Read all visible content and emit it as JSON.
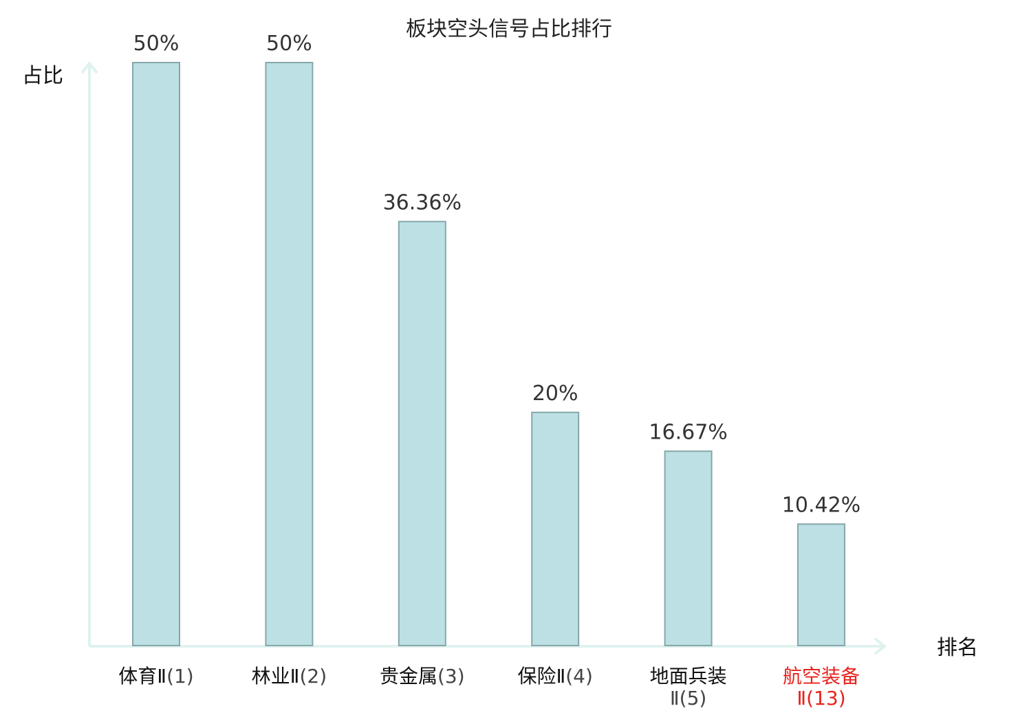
{
  "chart_data": {
    "type": "bar",
    "title": "板块空头信号占比排行",
    "ylabel": "占比",
    "xlabel": "排名",
    "ylim": [
      0,
      50
    ],
    "grid": false,
    "legend": "none",
    "categories": [
      {
        "name": "体育Ⅱ",
        "rank": "(1)",
        "highlight": false
      },
      {
        "name": "林业Ⅱ",
        "rank": "(2)",
        "highlight": false
      },
      {
        "name": "贵金属",
        "rank": "(3)",
        "highlight": false
      },
      {
        "name": "保险Ⅱ",
        "rank": "(4)",
        "highlight": false
      },
      {
        "name": "地面兵装",
        "rank": "Ⅱ(5)",
        "highlight": false,
        "wrap": true
      },
      {
        "name": "航空装备",
        "rank": "Ⅱ(13)",
        "highlight": true,
        "wrap": true
      }
    ],
    "values": [
      50,
      50,
      36.36,
      20,
      16.67,
      10.42
    ],
    "value_labels": [
      "50%",
      "50%",
      "36.36%",
      "20%",
      "16.67%",
      "10.42%"
    ],
    "colors": {
      "bar_fill": "#bce0e3",
      "bar_stroke": "#86a7aa",
      "axis": "#dff2ef",
      "label_text": "#111111",
      "rank_text": "#444444",
      "highlight": "#e8221c"
    }
  }
}
